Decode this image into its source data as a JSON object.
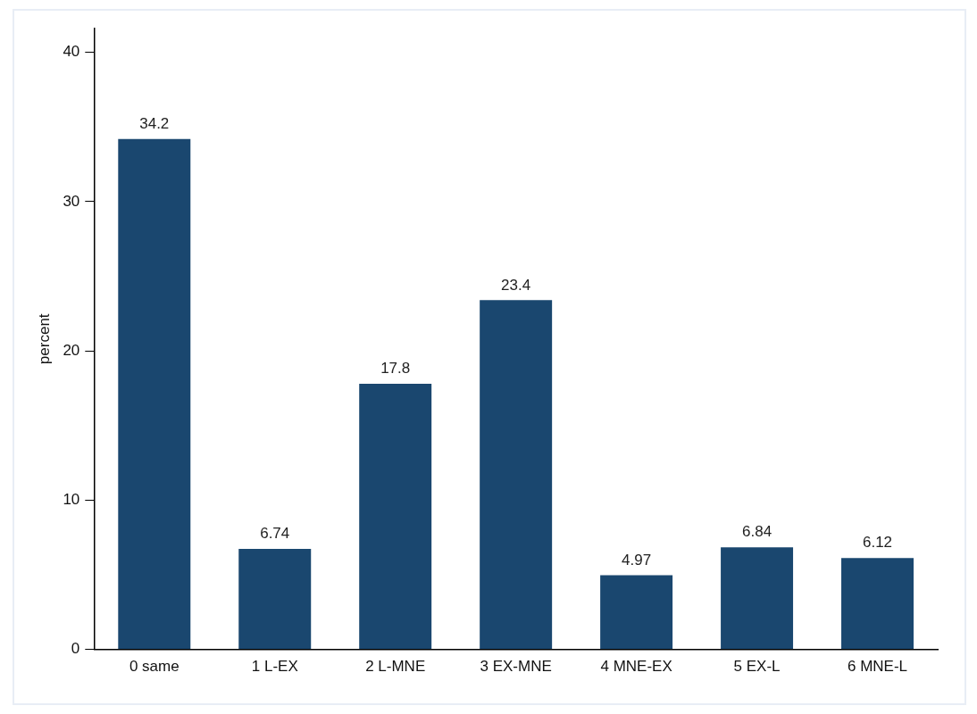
{
  "chart_data": {
    "type": "bar",
    "ylabel": "percent",
    "categories": [
      "0 same",
      "1 L-EX",
      "2 L-MNE",
      "3 EX-MNE",
      "4 MNE-EX",
      "5 EX-L",
      "6 MNE-L"
    ],
    "values": [
      34.2,
      6.74,
      17.8,
      23.4,
      4.97,
      6.84,
      6.12
    ],
    "color": "#1a476f",
    "ylim": [
      0,
      41.6
    ],
    "yticks": [
      0,
      10,
      20,
      30,
      40
    ],
    "data_labels": true,
    "grid": false,
    "legend": false
  }
}
